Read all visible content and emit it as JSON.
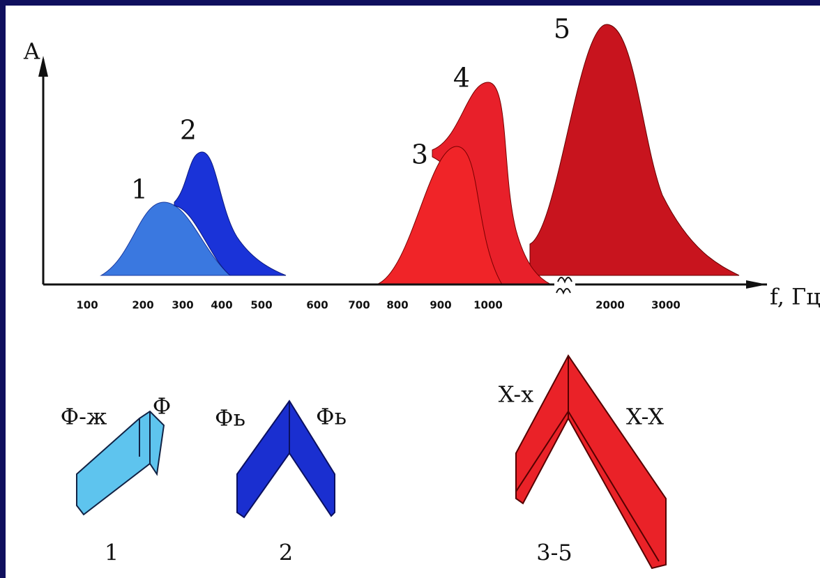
{
  "axis": {
    "y_label": "A",
    "x_label": "f, Гц",
    "ticks": [
      "100",
      "200",
      "300",
      "400",
      "500",
      "600",
      "700",
      "800",
      "900",
      "1000",
      "2000",
      "3000"
    ]
  },
  "peaks": [
    {
      "label": "1"
    },
    {
      "label": "2"
    },
    {
      "label": "3"
    },
    {
      "label": "4"
    },
    {
      "label": "5"
    }
  ],
  "structures": [
    {
      "left": "Ф-ж",
      "right": "Ф",
      "caption": "1"
    },
    {
      "left": "Фь",
      "right": "Фь",
      "caption": "2"
    },
    {
      "left": "X-x",
      "right": "X-X",
      "caption": "3-5"
    }
  ]
}
